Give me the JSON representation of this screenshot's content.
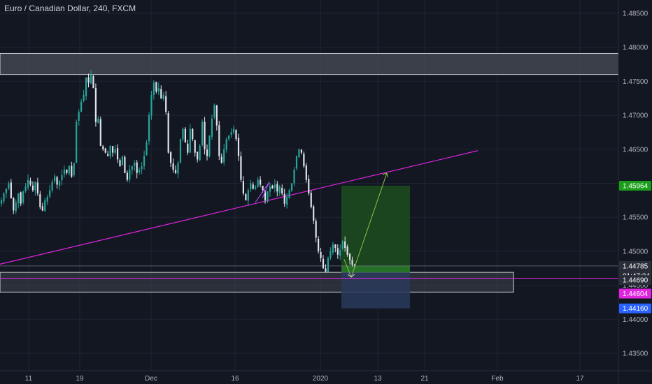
{
  "symbol_title": "Euro / Canadian Dollar, 240, FXCM",
  "colors": {
    "background": "#131722",
    "grid": "#1f2433",
    "axis_text": "#b2b5be",
    "candle_bull": "#26a69a",
    "candle_bear": "#e0e3eb",
    "trendline": "#e024e0",
    "support_line": "#e024e0",
    "zone_fill": "#4a4d57",
    "zone_border": "#d1d4dc",
    "profit_fill": "#1d4d1d",
    "profit_border": "#1f6b1f",
    "stop_fill": "#2a3a5c",
    "projection": "#8bc34a"
  },
  "chart_data": {
    "type": "candlestick",
    "timeframe": "240",
    "y_ticks": [
      "1.48500",
      "1.48000",
      "1.47500",
      "1.47000",
      "1.46500",
      "1.46000",
      "1.45500",
      "1.45000",
      "1.44500",
      "1.44000",
      "1.43500"
    ],
    "x_ticks": [
      "11",
      "19",
      "Dec",
      "16",
      "2020",
      "13",
      "21",
      "Feb",
      "17"
    ],
    "price_labels": [
      {
        "value": "1.45964",
        "kind": "target",
        "color": "#1a9e1a"
      },
      {
        "value": "1.44785",
        "kind": "last-price",
        "color": "#2a2e39"
      },
      {
        "value": "01:47:24",
        "kind": "countdown",
        "color": "#2a2e39"
      },
      {
        "value": "1.44690",
        "kind": "entry",
        "color": "#2a2e39"
      },
      {
        "value": "1.44604",
        "kind": "support",
        "color": "#e024e0"
      },
      {
        "value": "1.44160",
        "kind": "stop",
        "color": "#2962ff"
      }
    ],
    "candle_path": [
      1.4575,
      1.4585,
      1.4592,
      1.46,
      1.4578,
      1.456,
      1.4572,
      1.4585,
      1.457,
      1.4588,
      1.4595,
      1.4605,
      1.4598,
      1.459,
      1.4602,
      1.4585,
      1.4565,
      1.456,
      1.4575,
      1.458,
      1.459,
      1.4602,
      1.461,
      1.4598,
      1.4603,
      1.4612,
      1.462,
      1.4615,
      1.4625,
      1.461,
      1.463,
      1.469,
      1.4705,
      1.472,
      1.473,
      1.4755,
      1.4748,
      1.476,
      1.474,
      1.469,
      1.4695,
      1.4655,
      1.465,
      1.4645,
      1.464,
      1.4655,
      1.4645,
      1.465,
      1.4635,
      1.4625,
      1.464,
      1.4615,
      1.4605,
      1.462,
      1.4625,
      1.463,
      1.4615,
      1.462,
      1.4625,
      1.464,
      1.466,
      1.47,
      1.473,
      1.4748,
      1.4735,
      1.474,
      1.4725,
      1.473,
      1.4705,
      1.4645,
      1.463,
      1.462,
      1.4615,
      1.463,
      1.4665,
      1.468,
      1.466,
      1.4645,
      1.468,
      1.4665,
      1.4645,
      1.4635,
      1.4655,
      1.469,
      1.465,
      1.464,
      1.467,
      1.4695,
      1.4715,
      1.4685,
      1.464,
      1.463,
      1.465,
      1.4665,
      1.467,
      1.4675,
      1.468,
      1.4665,
      1.464,
      1.4605,
      1.4585,
      1.4575,
      1.459,
      1.46,
      1.4592,
      1.4595,
      1.4605,
      1.4598,
      1.459,
      1.4575,
      1.4588,
      1.4595,
      1.4592,
      1.4598,
      1.4588,
      1.4595,
      1.4585,
      1.457,
      1.458,
      1.459,
      1.46,
      1.462,
      1.464,
      1.465,
      1.4645,
      1.4625,
      1.4605,
      1.4585,
      1.4565,
      1.4545,
      1.452,
      1.45,
      1.449,
      1.4475,
      1.447,
      1.449,
      1.45,
      1.451,
      1.4505,
      1.4495,
      1.4502,
      1.4515,
      1.4505,
      1.4495,
      1.4487,
      1.448,
      1.4479
    ],
    "drawings": {
      "resistance_zone": [
        1.476,
        1.4791
      ],
      "support_zone": [
        1.444,
        1.4469
      ],
      "position": {
        "entry": 1.4469,
        "target": 1.45964,
        "stop": 1.4416
      },
      "trendline": {
        "from_price": 1.4481,
        "to_price": 1.4648
      },
      "support_line": 1.44604,
      "last_price": 1.44785
    },
    "price_range": [
      1.4315,
      1.492
    ]
  }
}
